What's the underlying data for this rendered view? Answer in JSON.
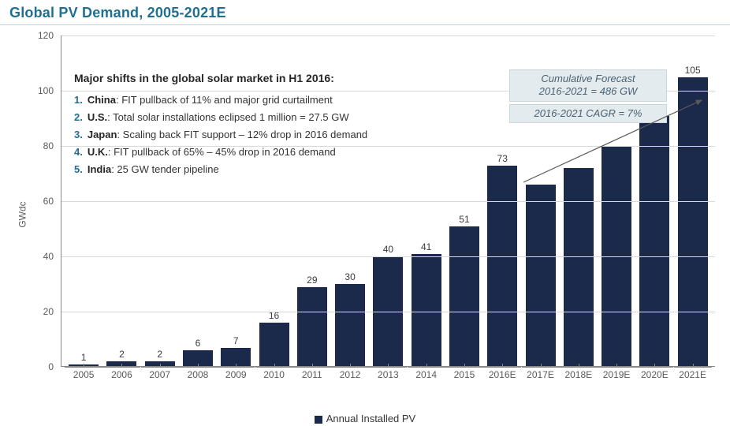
{
  "title": "Global PV Demand, 2005-2021E",
  "chart": {
    "type": "bar",
    "ylabel": "GWdc",
    "ylim": [
      0,
      120
    ],
    "ytick_step": 20,
    "yticks": [
      0,
      20,
      40,
      60,
      80,
      100,
      120
    ],
    "bar_color": "#1b2a4a",
    "grid_color": "#d9d9d9",
    "axis_color": "#888888",
    "background_color": "#ffffff",
    "label_fontsize": 12,
    "categories": [
      "2005",
      "2006",
      "2007",
      "2008",
      "2009",
      "2010",
      "2011",
      "2012",
      "2013",
      "2014",
      "2015",
      "2016E",
      "2017E",
      "2018E",
      "2019E",
      "2020E",
      "2021E"
    ],
    "values": [
      1,
      2,
      2,
      6,
      7,
      16,
      29,
      30,
      40,
      41,
      51,
      73,
      66,
      72,
      80,
      91,
      105
    ],
    "show_value_labels": [
      true,
      true,
      true,
      true,
      true,
      true,
      true,
      true,
      true,
      true,
      true,
      true,
      false,
      false,
      false,
      false,
      true
    ]
  },
  "annot": {
    "heading": "Major shifts in the global solar market in H1 2016:",
    "items": [
      {
        "n": "1.",
        "country": "China",
        "text": ": FIT pullback of 11% and major grid curtailment"
      },
      {
        "n": "2.",
        "country": "U.S.",
        "text": ": Total solar installations eclipsed 1 million = 27.5 GW"
      },
      {
        "n": "3.",
        "country": "Japan",
        "text": ": Scaling back FIT support – 12% drop in 2016 demand"
      },
      {
        "n": "4.",
        "country": "U.K.",
        "text": ": FIT pullback of 65% – 45% drop in 2016 demand"
      },
      {
        "n": "5.",
        "country": "India",
        "text": ": 25 GW tender pipeline"
      }
    ]
  },
  "callouts": {
    "a_line1": "Cumulative Forecast",
    "a_line2": "2016-2021 = 486 GW",
    "b": "2016-2021 CAGR = 7%"
  },
  "legend": {
    "label": "Annual Installed PV",
    "swatch_color": "#1b2a4a"
  },
  "colors": {
    "title": "#1f6f91",
    "callout_bg": "#e4ebee",
    "callout_border": "#cbd6db",
    "callout_text": "#4a6272"
  }
}
